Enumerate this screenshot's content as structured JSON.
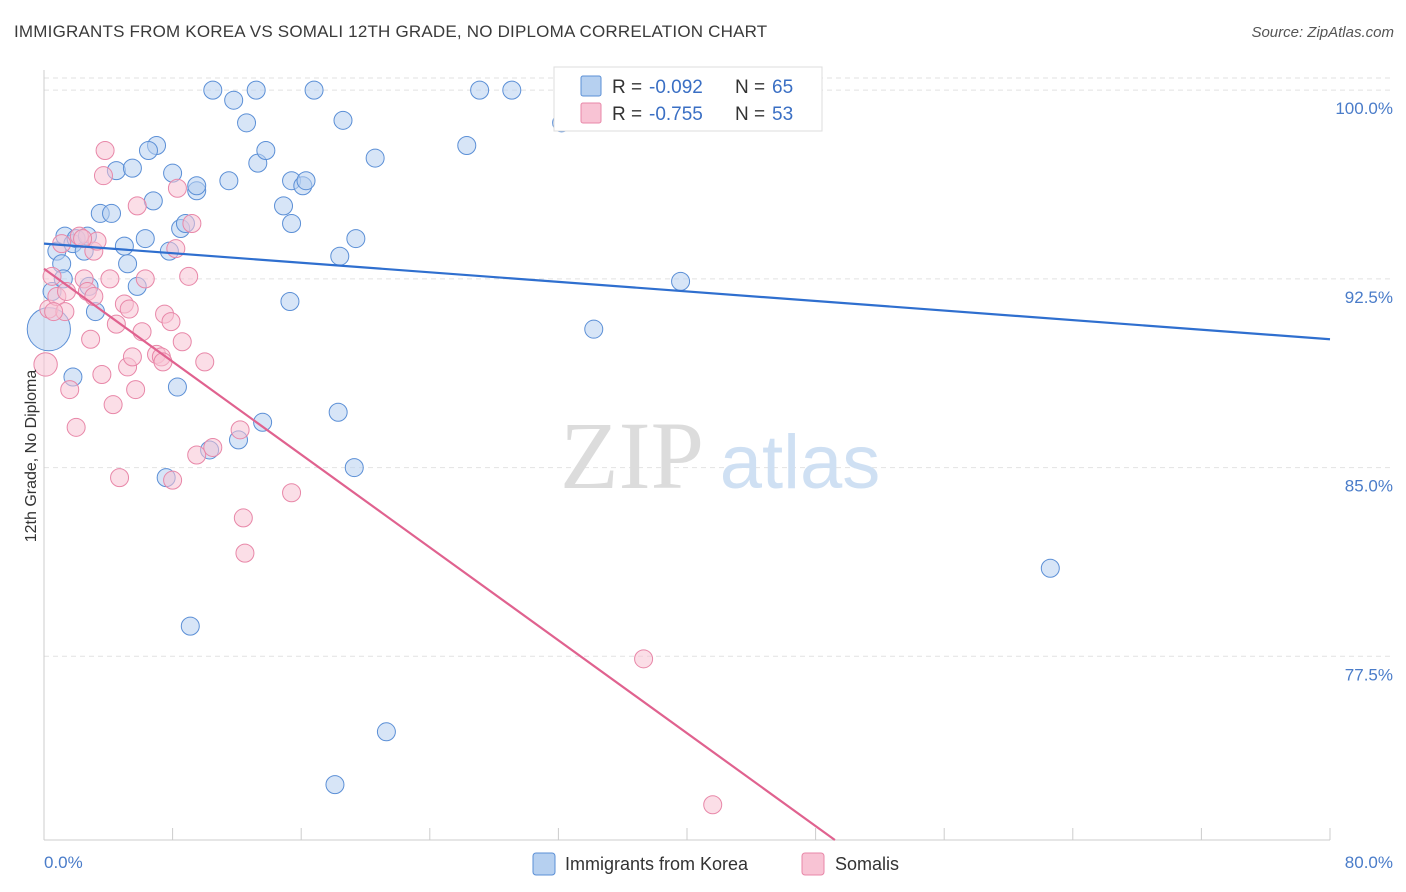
{
  "title": "IMMIGRANTS FROM KOREA VS SOMALI 12TH GRADE, NO DIPLOMA CORRELATION CHART",
  "source": "Source: ZipAtlas.com",
  "watermark": {
    "zip": "ZIP",
    "atlas": "atlas"
  },
  "colors": {
    "korea_fill": "#b6d0f0",
    "korea_stroke": "#5b8fd6",
    "korea_line": "#2f6fcf",
    "somali_fill": "#f8c3d4",
    "somali_stroke": "#e887a8",
    "somali_line": "#e0628f",
    "tick_text": "#4a7cc9",
    "grid": "#e2e2e2"
  },
  "legend": {
    "rows": [
      {
        "r_label": "R = ",
        "r_value": "-0.092",
        "n_label": "N = ",
        "n_value": "65",
        "series": "korea"
      },
      {
        "r_label": "R = ",
        "r_value": "-0.755",
        "n_label": "N = ",
        "n_value": "53",
        "series": "somali"
      }
    ]
  },
  "bottom_legend": [
    {
      "label": "Immigrants from Korea",
      "series": "korea"
    },
    {
      "label": "Somalis",
      "series": "somali"
    }
  ],
  "chart_data": {
    "type": "scatter",
    "title": "IMMIGRANTS FROM KOREA VS SOMALI 12TH GRADE, NO DIPLOMA CORRELATION CHART",
    "xlabel": "",
    "ylabel": "12th Grade, No Diploma",
    "xlim": [
      0,
      80
    ],
    "ylim": [
      70.2,
      100.8
    ],
    "x_tick_labels": [
      "0.0%",
      "80.0%"
    ],
    "y_ticks": [
      100.0,
      92.5,
      85.0,
      77.5
    ],
    "y_tick_labels": [
      "100.0%",
      "92.5%",
      "85.0%",
      "77.5%"
    ],
    "grid": true,
    "legend_position": "top-center",
    "series": [
      {
        "name": "Immigrants from Korea",
        "key": "korea",
        "trend": {
          "x": [
            0,
            80
          ],
          "y": [
            93.9,
            90.1
          ]
        },
        "points": [
          [
            0.3,
            90.5,
            2.4
          ],
          [
            0.5,
            92.0,
            1
          ],
          [
            0.8,
            93.6,
            1
          ],
          [
            1.1,
            93.1,
            1
          ],
          [
            1.3,
            94.2,
            1
          ],
          [
            1.8,
            93.9,
            1
          ],
          [
            2.0,
            94.1,
            1
          ],
          [
            2.5,
            93.6,
            1
          ],
          [
            2.7,
            94.2,
            1
          ],
          [
            1.8,
            88.6,
            1
          ],
          [
            2.8,
            92.2,
            1
          ],
          [
            3.5,
            95.1,
            1
          ],
          [
            4.2,
            95.1,
            1
          ],
          [
            4.5,
            96.8,
            1
          ],
          [
            5.5,
            96.9,
            1
          ],
          [
            5.0,
            93.8,
            1
          ],
          [
            5.2,
            93.1,
            1
          ],
          [
            5.8,
            92.2,
            1
          ],
          [
            6.3,
            94.1,
            1
          ],
          [
            6.8,
            95.6,
            1
          ],
          [
            7.0,
            97.8,
            1
          ],
          [
            6.5,
            97.6,
            1
          ],
          [
            7.8,
            93.6,
            1
          ],
          [
            8.0,
            96.7,
            1
          ],
          [
            8.5,
            94.5,
            1
          ],
          [
            8.8,
            94.7,
            1
          ],
          [
            9.5,
            96.0,
            1
          ],
          [
            9.5,
            96.2,
            1
          ],
          [
            8.3,
            88.2,
            1
          ],
          [
            7.6,
            84.6,
            1
          ],
          [
            9.1,
            78.7,
            1
          ],
          [
            10.3,
            85.7,
            1
          ],
          [
            10.5,
            100.0,
            1
          ],
          [
            11.8,
            99.6,
            1
          ],
          [
            12.6,
            98.7,
            1
          ],
          [
            13.2,
            100.0,
            1
          ],
          [
            13.3,
            97.1,
            1
          ],
          [
            11.5,
            96.4,
            1
          ],
          [
            13.8,
            97.6,
            1
          ],
          [
            14.9,
            95.4,
            1
          ],
          [
            15.4,
            96.4,
            1
          ],
          [
            16.1,
            96.2,
            1
          ],
          [
            16.3,
            96.4,
            1
          ],
          [
            15.4,
            94.7,
            1
          ],
          [
            16.8,
            100.0,
            1
          ],
          [
            15.3,
            91.6,
            1
          ],
          [
            18.6,
            98.8,
            1
          ],
          [
            18.4,
            93.4,
            1
          ],
          [
            19.4,
            94.1,
            1
          ],
          [
            20.6,
            97.3,
            1
          ],
          [
            27.1,
            100.0,
            1
          ],
          [
            29.1,
            100.0,
            1
          ],
          [
            32.2,
            98.7,
            1
          ],
          [
            26.3,
            97.8,
            1
          ],
          [
            34.2,
            90.5,
            1
          ],
          [
            39.6,
            92.4,
            1
          ],
          [
            12.1,
            86.1,
            1
          ],
          [
            13.6,
            86.8,
            1
          ],
          [
            18.3,
            87.2,
            1
          ],
          [
            19.3,
            85.0,
            1
          ],
          [
            21.3,
            74.5,
            1
          ],
          [
            18.1,
            72.4,
            1
          ],
          [
            62.6,
            81.0,
            1
          ],
          [
            1.2,
            92.5,
            1
          ],
          [
            3.2,
            91.2,
            1
          ]
        ]
      },
      {
        "name": "Somalis",
        "key": "somali",
        "trend": {
          "x": [
            0,
            49.2
          ],
          "y": [
            92.9,
            70.2
          ]
        },
        "points": [
          [
            0.1,
            89.1,
            1.3
          ],
          [
            0.3,
            91.3,
            1
          ],
          [
            0.5,
            92.6,
            1
          ],
          [
            0.8,
            91.8,
            1
          ],
          [
            1.1,
            93.9,
            1
          ],
          [
            1.3,
            91.2,
            1
          ],
          [
            1.6,
            88.1,
            1
          ],
          [
            2.0,
            86.6,
            1
          ],
          [
            2.2,
            94.2,
            1
          ],
          [
            2.5,
            92.5,
            1
          ],
          [
            2.7,
            92.0,
            1
          ],
          [
            2.9,
            90.1,
            1
          ],
          [
            3.1,
            93.6,
            1
          ],
          [
            3.3,
            94.0,
            1
          ],
          [
            3.1,
            91.8,
            1
          ],
          [
            3.6,
            88.7,
            1
          ],
          [
            3.7,
            96.6,
            1
          ],
          [
            3.8,
            97.6,
            1
          ],
          [
            4.1,
            92.5,
            1
          ],
          [
            4.3,
            87.5,
            1
          ],
          [
            4.5,
            90.7,
            1
          ],
          [
            4.7,
            84.6,
            1
          ],
          [
            5.0,
            91.5,
            1
          ],
          [
            5.2,
            89.0,
            1
          ],
          [
            5.3,
            91.3,
            1
          ],
          [
            5.5,
            89.4,
            1
          ],
          [
            5.7,
            88.1,
            1
          ],
          [
            5.8,
            95.4,
            1
          ],
          [
            6.1,
            90.4,
            1
          ],
          [
            6.3,
            92.5,
            1
          ],
          [
            7.0,
            89.5,
            1
          ],
          [
            7.3,
            89.4,
            1
          ],
          [
            7.4,
            89.2,
            1
          ],
          [
            7.5,
            91.1,
            1
          ],
          [
            7.9,
            90.8,
            1
          ],
          [
            8.2,
            93.7,
            1
          ],
          [
            8.3,
            96.1,
            1
          ],
          [
            8.0,
            84.5,
            1
          ],
          [
            8.6,
            90.0,
            1
          ],
          [
            9.0,
            92.6,
            1
          ],
          [
            9.2,
            94.7,
            1
          ],
          [
            9.5,
            85.5,
            1
          ],
          [
            10.0,
            89.2,
            1
          ],
          [
            10.5,
            85.8,
            1
          ],
          [
            12.2,
            86.5,
            1
          ],
          [
            12.4,
            83.0,
            1
          ],
          [
            12.5,
            81.6,
            1
          ],
          [
            15.4,
            84.0,
            1
          ],
          [
            37.3,
            77.4,
            1
          ],
          [
            41.6,
            71.6,
            1
          ],
          [
            1.4,
            92.0,
            1
          ],
          [
            0.6,
            91.2,
            1
          ],
          [
            2.4,
            94.1,
            1
          ]
        ]
      }
    ]
  }
}
